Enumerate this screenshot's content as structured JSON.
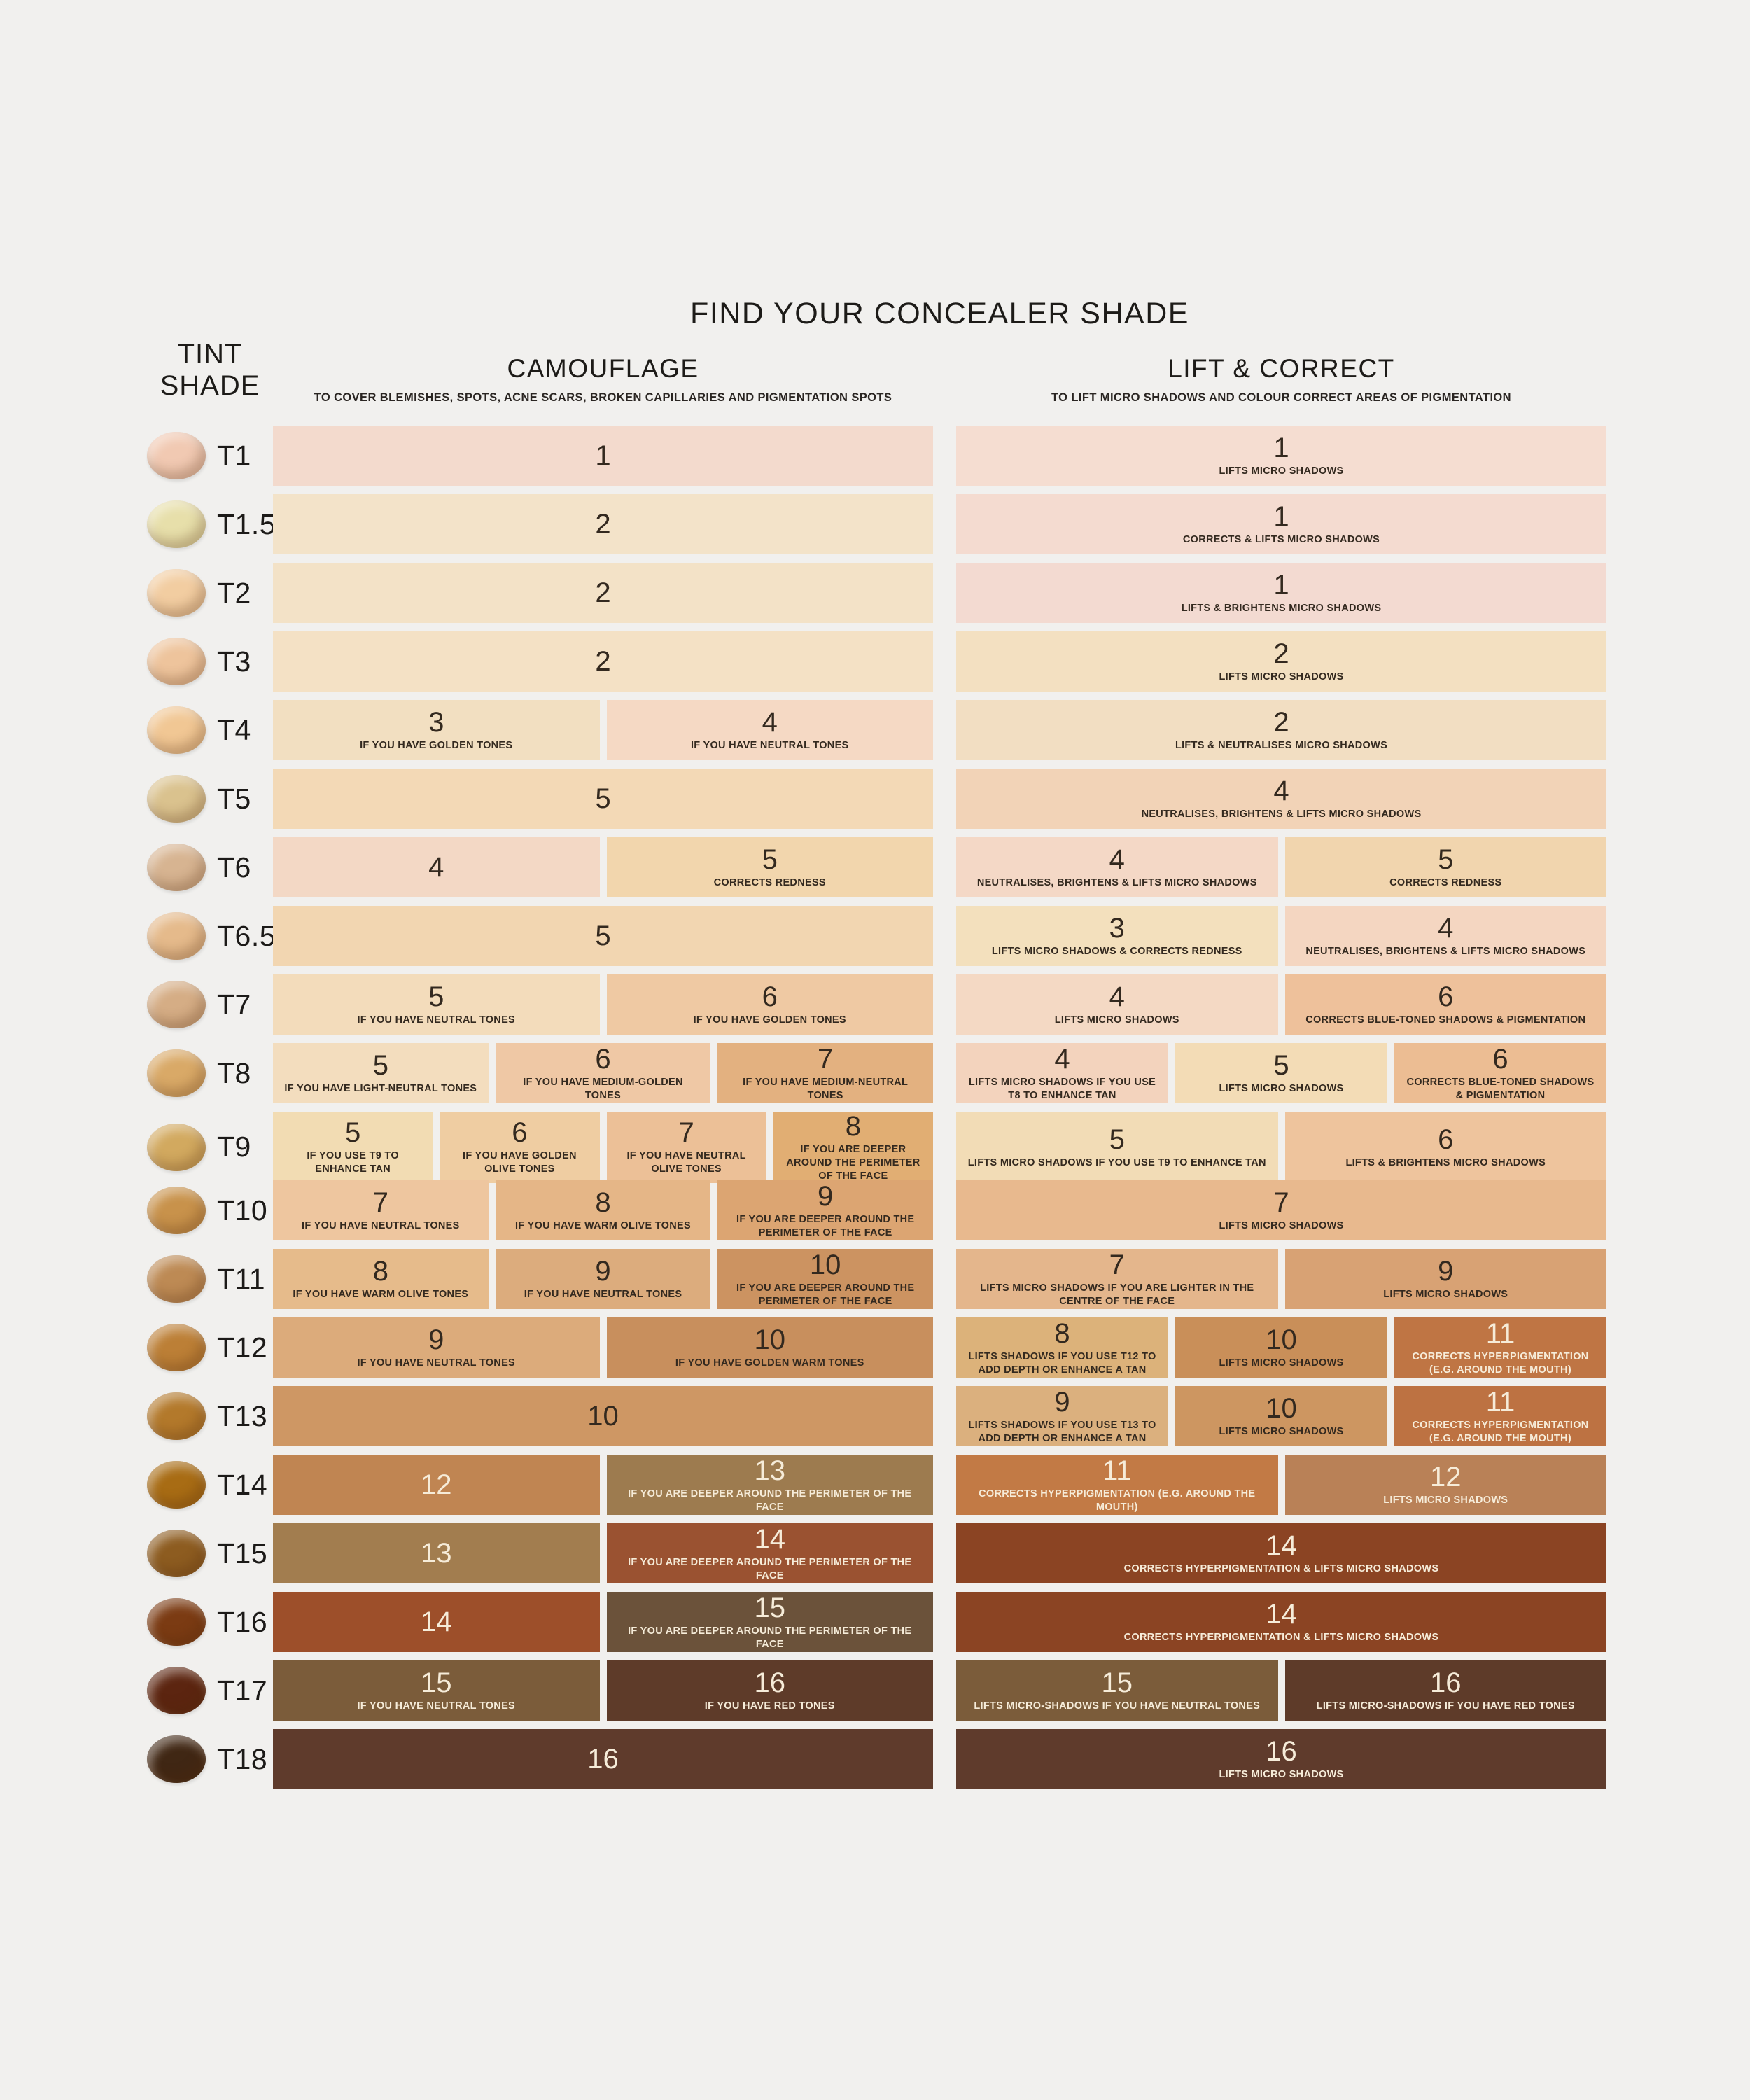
{
  "page": {
    "background": "#f1f0ee"
  },
  "colors": {
    "text_dark": "#33291f",
    "text_light": "#f6ecd9",
    "heading": "#1d1b18"
  },
  "header": {
    "title": "FIND YOUR CONCEALER SHADE",
    "tint_shade_line1": "TINT",
    "tint_shade_line2": "SHADE",
    "camouflage_label": "CAMOUFLAGE",
    "camouflage_subtitle": "TO COVER BLEMISHES, SPOTS, ACNE SCARS, BROKEN CAPILLARIES AND PIGMENTATION SPOTS",
    "lift_label": "LIFT & CORRECT",
    "lift_subtitle": "TO LIFT MICRO SHADOWS AND COLOUR CORRECT AREAS OF PIGMENTATION"
  },
  "chart_data": {
    "type": "table",
    "title": "FIND YOUR CONCEALER SHADE",
    "columns": [
      "TINT SHADE",
      "CAMOUFLAGE",
      "LIFT & CORRECT"
    ],
    "rows": [
      {
        "shade": "T1",
        "swatch_color": "#f1c9b2",
        "camouflage": [
          {
            "number": "1",
            "note": "",
            "color": "#f3dacd"
          }
        ],
        "lift_correct": [
          {
            "number": "1",
            "note": "LIFTS MICRO SHADOWS",
            "color": "#f5ddd1"
          }
        ]
      },
      {
        "shade": "T1.5",
        "swatch_color": "#e7dfaa",
        "camouflage": [
          {
            "number": "2",
            "note": "",
            "color": "#f3e3c9"
          }
        ],
        "lift_correct": [
          {
            "number": "1",
            "note": "CORRECTS & LIFTS MICRO SHADOWS",
            "color": "#f4dbd0"
          }
        ]
      },
      {
        "shade": "T2",
        "swatch_color": "#f2cda1",
        "camouflage": [
          {
            "number": "2",
            "note": "",
            "color": "#f3e2c7"
          }
        ],
        "lift_correct": [
          {
            "number": "1",
            "note": "LIFTS & BRIGHTENS MICRO SHADOWS",
            "color": "#f3dad1"
          }
        ]
      },
      {
        "shade": "T3",
        "swatch_color": "#eec49c",
        "camouflage": [
          {
            "number": "2",
            "note": "",
            "color": "#f4e1c5"
          }
        ],
        "lift_correct": [
          {
            "number": "2",
            "note": "LIFTS MICRO SHADOWS",
            "color": "#f3e0c1"
          }
        ]
      },
      {
        "shade": "T4",
        "swatch_color": "#f1c794",
        "camouflage": [
          {
            "number": "3",
            "note": "IF YOU HAVE GOLDEN TONES",
            "color": "#f2dfc1"
          },
          {
            "number": "4",
            "note": "IF YOU HAVE NEUTRAL TONES",
            "color": "#f5d9c4"
          }
        ],
        "lift_correct": [
          {
            "number": "2",
            "note": "LIFTS & NEUTRALISES MICRO SHADOWS",
            "color": "#f2dec2"
          }
        ]
      },
      {
        "shade": "T5",
        "swatch_color": "#dac28e",
        "camouflage": [
          {
            "number": "5",
            "note": "",
            "color": "#f3d9b6"
          }
        ],
        "lift_correct": [
          {
            "number": "4",
            "note": "NEUTRALISES, BRIGHTENS & LIFTS MICRO SHADOWS",
            "color": "#f2d3b7"
          }
        ]
      },
      {
        "shade": "T6",
        "swatch_color": "#d7b491",
        "camouflage": [
          {
            "number": "4",
            "note": "",
            "color": "#f3d8c5"
          },
          {
            "number": "5",
            "note": "CORRECTS REDNESS",
            "color": "#f2d6ad"
          }
        ],
        "lift_correct": [
          {
            "number": "4",
            "note": "NEUTRALISES, BRIGHTENS & LIFTS MICRO SHADOWS",
            "color": "#f4d8c6"
          },
          {
            "number": "5",
            "note": "CORRECTS REDNESS",
            "color": "#f1d5ae"
          }
        ]
      },
      {
        "shade": "T6.5",
        "swatch_color": "#e5ba8b",
        "camouflage": [
          {
            "number": "5",
            "note": "",
            "color": "#f2d6b1"
          }
        ],
        "lift_correct": [
          {
            "number": "3",
            "note": "LIFTS MICRO SHADOWS & CORRECTS REDNESS",
            "color": "#f3e0bd"
          },
          {
            "number": "4",
            "note": "NEUTRALISES, BRIGHTENS & LIFTS MICRO SHADOWS",
            "color": "#f4d6c1"
          }
        ]
      },
      {
        "shade": "T7",
        "swatch_color": "#d5ad85",
        "camouflage": [
          {
            "number": "5",
            "note": "IF YOU HAVE NEUTRAL TONES",
            "color": "#f3dcbb"
          },
          {
            "number": "6",
            "note": "IF YOU HAVE GOLDEN TONES",
            "color": "#efc9a3"
          }
        ],
        "lift_correct": [
          {
            "number": "4",
            "note": "LIFTS MICRO SHADOWS",
            "color": "#f4d9c4"
          },
          {
            "number": "6",
            "note": "CORRECTS BLUE-TONED SHADOWS & PIGMENTATION",
            "color": "#eec19b"
          }
        ]
      },
      {
        "shade": "T8",
        "swatch_color": "#d9a967",
        "camouflage": [
          {
            "number": "5",
            "note": "IF YOU HAVE LIGHT-NEUTRAL TONES",
            "color": "#f3ddbe"
          },
          {
            "number": "6",
            "note": "IF YOU HAVE MEDIUM-GOLDEN TONES",
            "color": "#efc8a5"
          },
          {
            "number": "7",
            "note": "IF YOU HAVE MEDIUM-NEUTRAL TONES",
            "color": "#e3b180"
          }
        ],
        "lift_correct": [
          {
            "number": "4",
            "note": "LIFTS MICRO SHADOWS IF YOU USE T8 TO ENHANCE TAN",
            "color": "#f3d3bd"
          },
          {
            "number": "5",
            "note": "LIFTS MICRO SHADOWS",
            "color": "#f3dcb6"
          },
          {
            "number": "6",
            "note": "CORRECTS BLUE-TONED SHADOWS & PIGMENTATION",
            "color": "#ecbd93"
          }
        ]
      },
      {
        "shade": "T9",
        "swatch_color": "#d2a95f",
        "camouflage": [
          {
            "number": "5",
            "note": "IF YOU USE T9 TO ENHANCE TAN",
            "color": "#f2dcb3"
          },
          {
            "number": "6",
            "note": "IF YOU HAVE GOLDEN OLIVE TONES",
            "color": "#efcda2"
          },
          {
            "number": "7",
            "note": "IF YOU HAVE NEUTRAL OLIVE TONES",
            "color": "#ecc097"
          },
          {
            "number": "8",
            "note": "IF YOU ARE DEEPER AROUND THE PERIMETER OF THE FACE",
            "color": "#e1ae73"
          }
        ],
        "lift_correct": [
          {
            "number": "5",
            "note": "LIFTS MICRO SHADOWS IF YOU USE T9 TO ENHANCE TAN",
            "color": "#f2dcb6"
          },
          {
            "number": "6",
            "note": "LIFTS & BRIGHTENS MICRO SHADOWS",
            "color": "#eec49d"
          }
        ]
      },
      {
        "shade": "T10",
        "swatch_color": "#c8924b",
        "camouflage": [
          {
            "number": "7",
            "note": "IF YOU HAVE NEUTRAL TONES",
            "color": "#eec69f"
          },
          {
            "number": "8",
            "note": "IF YOU HAVE WARM OLIVE TONES",
            "color": "#e5b687"
          },
          {
            "number": "9",
            "note": "IF YOU ARE DEEPER AROUND THE PERIMETER OF THE FACE",
            "color": "#dca572"
          }
        ],
        "lift_correct": [
          {
            "number": "7",
            "note": "LIFTS MICRO SHADOWS",
            "color": "#e8b98e"
          }
        ]
      },
      {
        "shade": "T11",
        "swatch_color": "#bd8a54",
        "camouflage": [
          {
            "number": "8",
            "note": "IF YOU HAVE WARM OLIVE TONES",
            "color": "#e6bb8b"
          },
          {
            "number": "9",
            "note": "IF YOU HAVE NEUTRAL TONES",
            "color": "#dcac7d"
          },
          {
            "number": "10",
            "note": "IF YOU ARE DEEPER AROUND THE PERIMETER OF THE FACE",
            "color": "#cc9361"
          }
        ],
        "lift_correct": [
          {
            "number": "7",
            "note": "LIFTS MICRO SHADOWS IF YOU ARE LIGHTER IN THE CENTRE OF THE FACE",
            "color": "#e4b68c"
          },
          {
            "number": "9",
            "note": "LIFTS MICRO SHADOWS",
            "color": "#d8a274"
          }
        ]
      },
      {
        "shade": "T12",
        "swatch_color": "#bc7f36",
        "camouflage": [
          {
            "number": "9",
            "note": "IF YOU HAVE NEUTRAL TONES",
            "color": "#dcab7b"
          },
          {
            "number": "10",
            "note": "IF YOU HAVE GOLDEN WARM TONES",
            "color": "#c88f5d"
          }
        ],
        "lift_correct": [
          {
            "number": "8",
            "note": "LIFTS SHADOWS IF YOU USE T12 TO ADD DEPTH OR ENHANCE A TAN",
            "color": "#dcb27a"
          },
          {
            "number": "10",
            "note": "LIFTS MICRO SHADOWS",
            "color": "#c98f59"
          },
          {
            "number": "11",
            "note": "CORRECTS HYPERPIGMENTATION (E.G. AROUND THE MOUTH)",
            "color": "#bf7544",
            "light_text": true
          }
        ]
      },
      {
        "shade": "T13",
        "swatch_color": "#b3792b",
        "camouflage": [
          {
            "number": "10",
            "note": "",
            "color": "#ce9764"
          }
        ],
        "lift_correct": [
          {
            "number": "9",
            "note": "LIFTS SHADOWS IF YOU USE T13 TO ADD DEPTH OR ENHANCE A TAN",
            "color": "#dbb07e"
          },
          {
            "number": "10",
            "note": "LIFTS MICRO SHADOWS",
            "color": "#cd9661"
          },
          {
            "number": "11",
            "note": "CORRECTS HYPERPIGMENTATION (E.G. AROUND THE MOUTH)",
            "color": "#bd7242",
            "light_text": true
          }
        ]
      },
      {
        "shade": "T14",
        "swatch_color": "#a86c14",
        "camouflage": [
          {
            "number": "12",
            "note": "",
            "color": "#c08552",
            "light_text": true
          },
          {
            "number": "13",
            "note": "IF YOU ARE DEEPER AROUND THE PERIMETER OF THE FACE",
            "color": "#9d7b4f",
            "light_text": true
          }
        ],
        "lift_correct": [
          {
            "number": "11",
            "note": "CORRECTS HYPERPIGMENTATION (E.G. AROUND THE MOUTH)",
            "color": "#c27a45",
            "light_text": true
          },
          {
            "number": "12",
            "note": "LIFTS MICRO SHADOWS",
            "color": "#b98157",
            "light_text": true
          }
        ]
      },
      {
        "shade": "T15",
        "swatch_color": "#8d5c20",
        "camouflage": [
          {
            "number": "13",
            "note": "",
            "color": "#a27d4f",
            "light_text": true
          },
          {
            "number": "14",
            "note": "IF YOU ARE DEEPER AROUND THE PERIMETER OF THE FACE",
            "color": "#9a5231",
            "light_text": true
          }
        ],
        "lift_correct": [
          {
            "number": "14",
            "note": "CORRECTS HYPERPIGMENTATION & LIFTS MICRO SHADOWS",
            "color": "#8b4423",
            "light_text": true
          }
        ]
      },
      {
        "shade": "T16",
        "swatch_color": "#7b3b13",
        "camouflage": [
          {
            "number": "14",
            "note": "",
            "color": "#9d4f2a",
            "light_text": true
          },
          {
            "number": "15",
            "note": "IF YOU ARE DEEPER AROUND THE PERIMETER OF THE FACE",
            "color": "#6b523a",
            "light_text": true
          }
        ],
        "lift_correct": [
          {
            "number": "14",
            "note": "CORRECTS HYPERPIGMENTATION & LIFTS MICRO SHADOWS",
            "color": "#8b4423",
            "light_text": true
          }
        ]
      },
      {
        "shade": "T17",
        "swatch_color": "#5c2510",
        "camouflage": [
          {
            "number": "15",
            "note": "IF YOU HAVE NEUTRAL TONES",
            "color": "#7b5c3a",
            "light_text": true
          },
          {
            "number": "16",
            "note": "IF YOU HAVE RED TONES",
            "color": "#5e3b29",
            "light_text": true
          }
        ],
        "lift_correct": [
          {
            "number": "15",
            "note": "LIFTS MICRO-SHADOWS IF YOU HAVE NEUTRAL TONES",
            "color": "#7b5c3a",
            "light_text": true
          },
          {
            "number": "16",
            "note": "LIFTS MICRO-SHADOWS IF YOU HAVE RED TONES",
            "color": "#5e3b29",
            "light_text": true
          }
        ]
      },
      {
        "shade": "T18",
        "swatch_color": "#402714",
        "camouflage": [
          {
            "number": "16",
            "note": "",
            "color": "#5f3b2c",
            "light_text": true
          }
        ],
        "lift_correct": [
          {
            "number": "16",
            "note": "LIFTS MICRO SHADOWS",
            "color": "#5f3b2c",
            "light_text": true
          }
        ]
      }
    ]
  }
}
